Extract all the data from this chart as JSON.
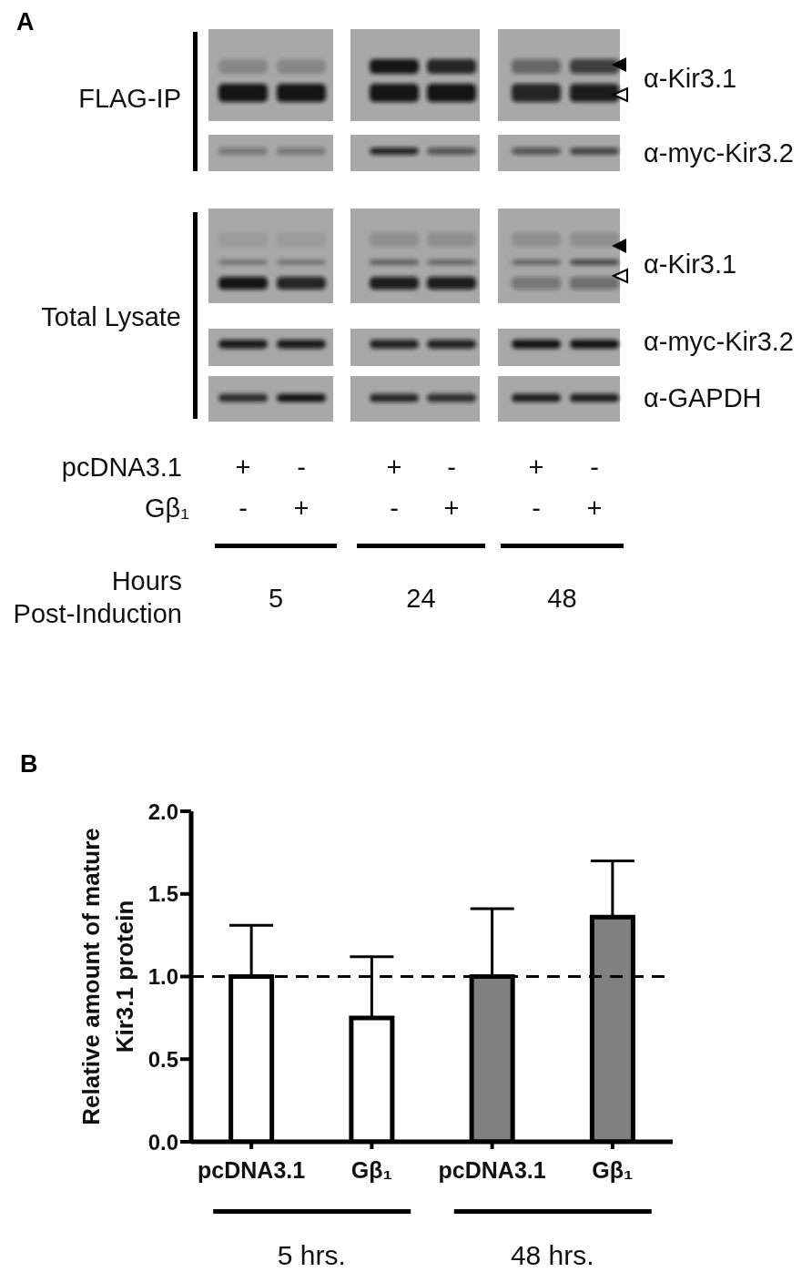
{
  "chart_data": [
    {
      "type": "other",
      "title": "A",
      "xlabel": "Hours Post-Induction",
      "categories": [
        "5",
        "24",
        "48"
      ],
      "annotations": [
        "FLAG-IP",
        "Total Lysate",
        "α-Kir3.1",
        "α-myc-Kir3.2",
        "α-Kir3.1",
        "α-myc-Kir3.2",
        "α-GAPDH",
        "pcDNA3.1",
        "Gβ₁",
        "+",
        "-",
        "+",
        "-",
        "+",
        "-",
        "-",
        "+",
        "-",
        "+",
        "-",
        "+"
      ]
    },
    {
      "type": "bar",
      "title": "B",
      "ylabel": "Relative amount of mature Kir3.1 protein",
      "categories": [
        "pcDNA3.1",
        "Gβ₁",
        "pcDNA3.1",
        "Gβ₁"
      ],
      "values": [
        1.0,
        0.75,
        1.0,
        1.36
      ],
      "colors": [
        "#ffffff",
        "#ffffff",
        "#808080",
        "#808080"
      ],
      "errors": [
        [
          1.0,
          1.31
        ],
        [
          0.75,
          1.12
        ],
        [
          1.0,
          1.41
        ],
        [
          1.36,
          1.7
        ]
      ],
      "ylim": [
        0,
        2
      ],
      "yticks": [
        {
          "value": 0,
          "label": "0.0"
        },
        {
          "value": 0.5,
          "label": "0.5"
        },
        {
          "value": 1,
          "label": "1.0"
        },
        {
          "value": 1.5,
          "label": "1.5"
        },
        {
          "value": 2,
          "label": "2.0"
        }
      ],
      "ref_lines": [
        {
          "axis": "y",
          "value": 1,
          "line_style": "dashed",
          "color": "#000000"
        }
      ],
      "annotations": [
        "5 hrs.",
        "48 hrs."
      ]
    }
  ]
}
